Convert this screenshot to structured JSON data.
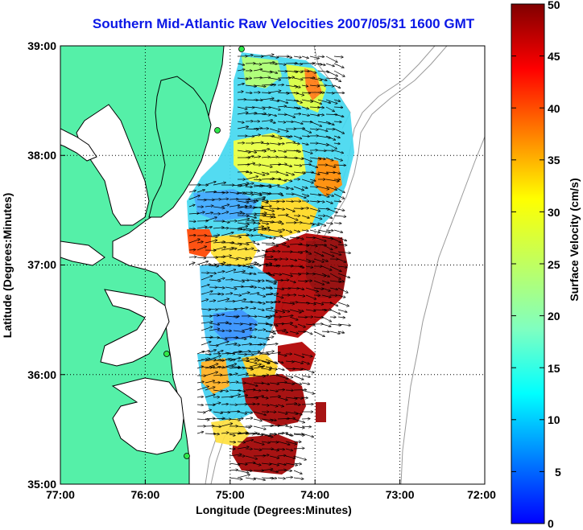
{
  "title": "Southern Mid-Atlantic Raw Velocities 2007/05/31 1600 GMT",
  "axes": {
    "xlabel": "Longitude (Degrees:Minutes)",
    "ylabel": "Latitude (Degrees:Minutes)",
    "x_ticks": [
      "77:00",
      "76:00",
      "75:00",
      "74:00",
      "73:00",
      "72:00"
    ],
    "y_ticks": [
      "39:00",
      "38:00",
      "37:00",
      "36:00",
      "35:00"
    ],
    "xlim": [
      -77,
      -72
    ],
    "ylim": [
      35,
      39
    ],
    "grid": "dotted"
  },
  "colorbar": {
    "label": "Surface Velocity (cm/s)",
    "ticks": [
      "50",
      "45",
      "40",
      "35",
      "30",
      "25",
      "20",
      "15",
      "10",
      "5",
      "0"
    ],
    "range": [
      0,
      50
    ],
    "colormap": "jet"
  },
  "colors": {
    "title": "#0a17e6",
    "land": "#55f0a8",
    "coast": "#000000",
    "bathymetry": "#9a9a9a",
    "station": "#2ee84a"
  }
}
